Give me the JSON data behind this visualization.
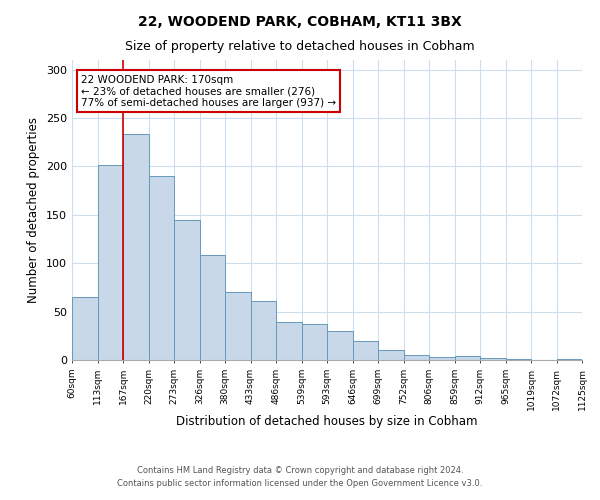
{
  "title": "22, WOODEND PARK, COBHAM, KT11 3BX",
  "subtitle": "Size of property relative to detached houses in Cobham",
  "xlabel": "Distribution of detached houses by size in Cobham",
  "ylabel": "Number of detached properties",
  "bin_labels": [
    "60sqm",
    "113sqm",
    "167sqm",
    "220sqm",
    "273sqm",
    "326sqm",
    "380sqm",
    "433sqm",
    "486sqm",
    "539sqm",
    "593sqm",
    "646sqm",
    "699sqm",
    "752sqm",
    "806sqm",
    "859sqm",
    "912sqm",
    "965sqm",
    "1019sqm",
    "1072sqm",
    "1125sqm"
  ],
  "bar_values": [
    65,
    202,
    234,
    190,
    145,
    109,
    70,
    61,
    39,
    37,
    30,
    20,
    10,
    5,
    3,
    4,
    2,
    1,
    0,
    1
  ],
  "bar_color": "#c8d8e8",
  "bar_edge_color": "#6699bb",
  "vline_x_index": 2,
  "vline_color": "#cc0000",
  "annot_line1": "22 WOODEND PARK: 170sqm",
  "annot_line2": "← 23% of detached houses are smaller (276)",
  "annot_line3": "77% of semi-detached houses are larger (937) →",
  "annotation_box_color": "#cc0000",
  "ylim": [
    0,
    310
  ],
  "yticks": [
    0,
    50,
    100,
    150,
    200,
    250,
    300
  ],
  "footer_line1": "Contains HM Land Registry data © Crown copyright and database right 2024.",
  "footer_line2": "Contains public sector information licensed under the Open Government Licence v3.0.",
  "background_color": "#ffffff",
  "grid_color": "#ccddee",
  "title_fontsize": 10,
  "subtitle_fontsize": 9
}
